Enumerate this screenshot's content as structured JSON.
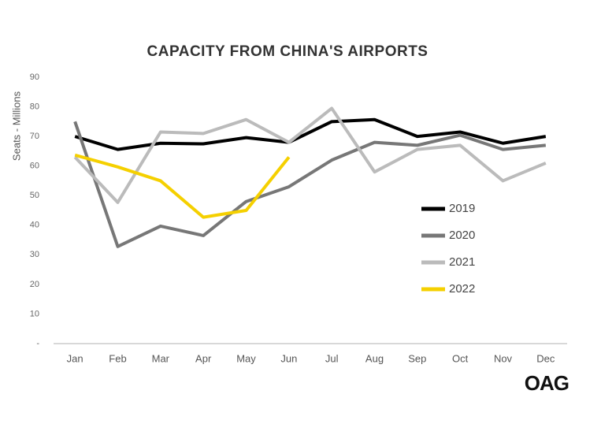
{
  "chart_data": {
    "type": "line",
    "title": "CAPACITY FROM CHINA'S AIRPORTS",
    "y_label": "Seats - Millions",
    "logo": "OAG",
    "categories": [
      "Jan",
      "Feb",
      "Mar",
      "Apr",
      "May",
      "Jun",
      "Jul",
      "Aug",
      "Sep",
      "Oct",
      "Nov",
      "Dec"
    ],
    "series": [
      {
        "name": "2019",
        "color": "#000000",
        "values": [
          70,
          65.6,
          67.7,
          67.5,
          69.6,
          68,
          75,
          75.7,
          70,
          71.5,
          67.7,
          70
        ]
      },
      {
        "name": "2020",
        "color": "#777777",
        "values": [
          75,
          32.8,
          39.7,
          36.5,
          48,
          53,
          62,
          68,
          67,
          70.4,
          65.6,
          67
        ]
      },
      {
        "name": "2021",
        "color": "#bbbbbb",
        "values": [
          63,
          47.7,
          71.5,
          71,
          75.7,
          68,
          79.5,
          58,
          65.6,
          67,
          55,
          61
        ]
      },
      {
        "name": "2022",
        "color": "#f5d000",
        "values": [
          63.7,
          59.7,
          55,
          42.7,
          45,
          63,
          null,
          null,
          null,
          null,
          null,
          null
        ]
      }
    ],
    "ylim": [
      0,
      90
    ],
    "yticks": [
      {
        "value": 0,
        "label": "-"
      },
      10,
      20,
      30,
      40,
      50,
      60,
      70,
      80,
      90
    ],
    "grid": false,
    "legend": "right"
  }
}
